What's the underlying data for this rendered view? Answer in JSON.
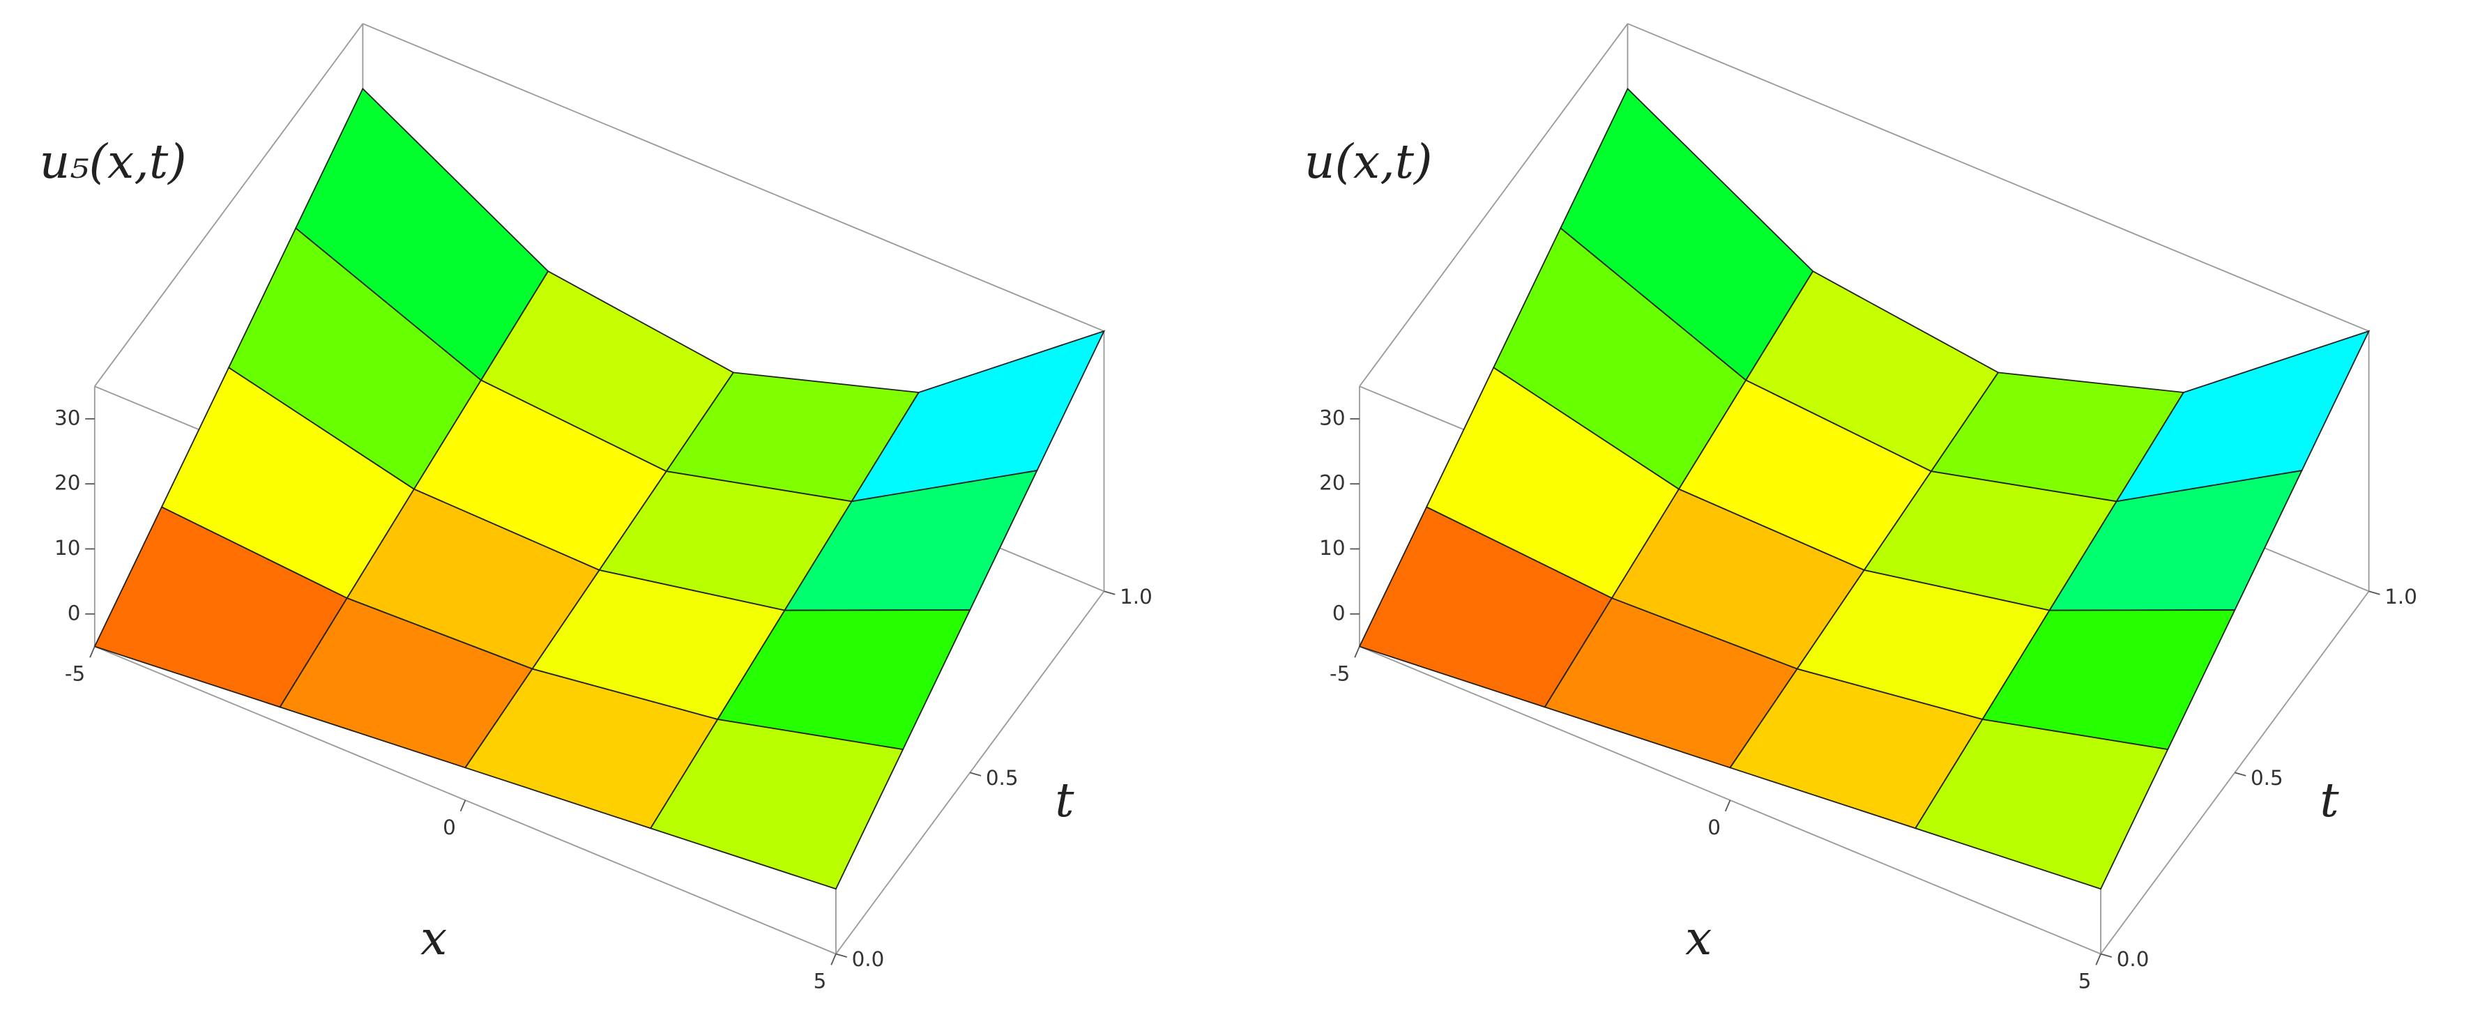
{
  "chart_data": [
    {
      "type": "surface",
      "z_label": "u₅(x,t)",
      "x_label": "x",
      "y_label": "t",
      "x": [
        -5,
        -2.5,
        0,
        2.5,
        5
      ],
      "y": [
        0,
        0.25,
        0.5,
        0.75,
        1
      ],
      "z": [
        [
          -5,
          -2.5,
          0,
          2.5,
          5
        ],
        [
          2.5,
          0.31,
          1.25,
          5.31,
          12.5
        ],
        [
          10,
          3.13,
          2.5,
          8.13,
          20
        ],
        [
          17.5,
          5.94,
          3.75,
          10.94,
          27.5
        ],
        [
          25,
          8.75,
          5,
          13.75,
          35
        ]
      ],
      "xlim": [
        -5,
        5
      ],
      "ylim": [
        0,
        1
      ],
      "zlim": [
        -5,
        35
      ],
      "xticks": [
        -5,
        0,
        5
      ],
      "yticks": [
        {
          "value": 0,
          "label": "0.0"
        },
        0.5,
        {
          "value": 1,
          "label": "1.0"
        }
      ],
      "zticks": [
        0,
        10,
        20,
        30
      ]
    },
    {
      "type": "surface",
      "z_label": "u(x,t)",
      "x_label": "x",
      "y_label": "t",
      "x": [
        -5,
        -2.5,
        0,
        2.5,
        5
      ],
      "y": [
        0,
        0.25,
        0.5,
        0.75,
        1
      ],
      "z": [
        [
          -5,
          -2.5,
          0,
          2.5,
          5
        ],
        [
          2.5,
          0.31,
          1.25,
          5.31,
          12.5
        ],
        [
          10,
          3.13,
          2.5,
          8.13,
          20
        ],
        [
          17.5,
          5.94,
          3.75,
          10.94,
          27.5
        ],
        [
          25,
          8.75,
          5,
          13.75,
          35
        ]
      ],
      "xlim": [
        -5,
        5
      ],
      "ylim": [
        0,
        1
      ],
      "zlim": [
        -5,
        35
      ],
      "xticks": [
        -5,
        0,
        5
      ],
      "yticks": [
        {
          "value": 0,
          "label": "0.0"
        },
        0.5,
        {
          "value": 1,
          "label": "1.0"
        }
      ],
      "zticks": [
        0,
        10,
        20,
        30
      ]
    }
  ]
}
